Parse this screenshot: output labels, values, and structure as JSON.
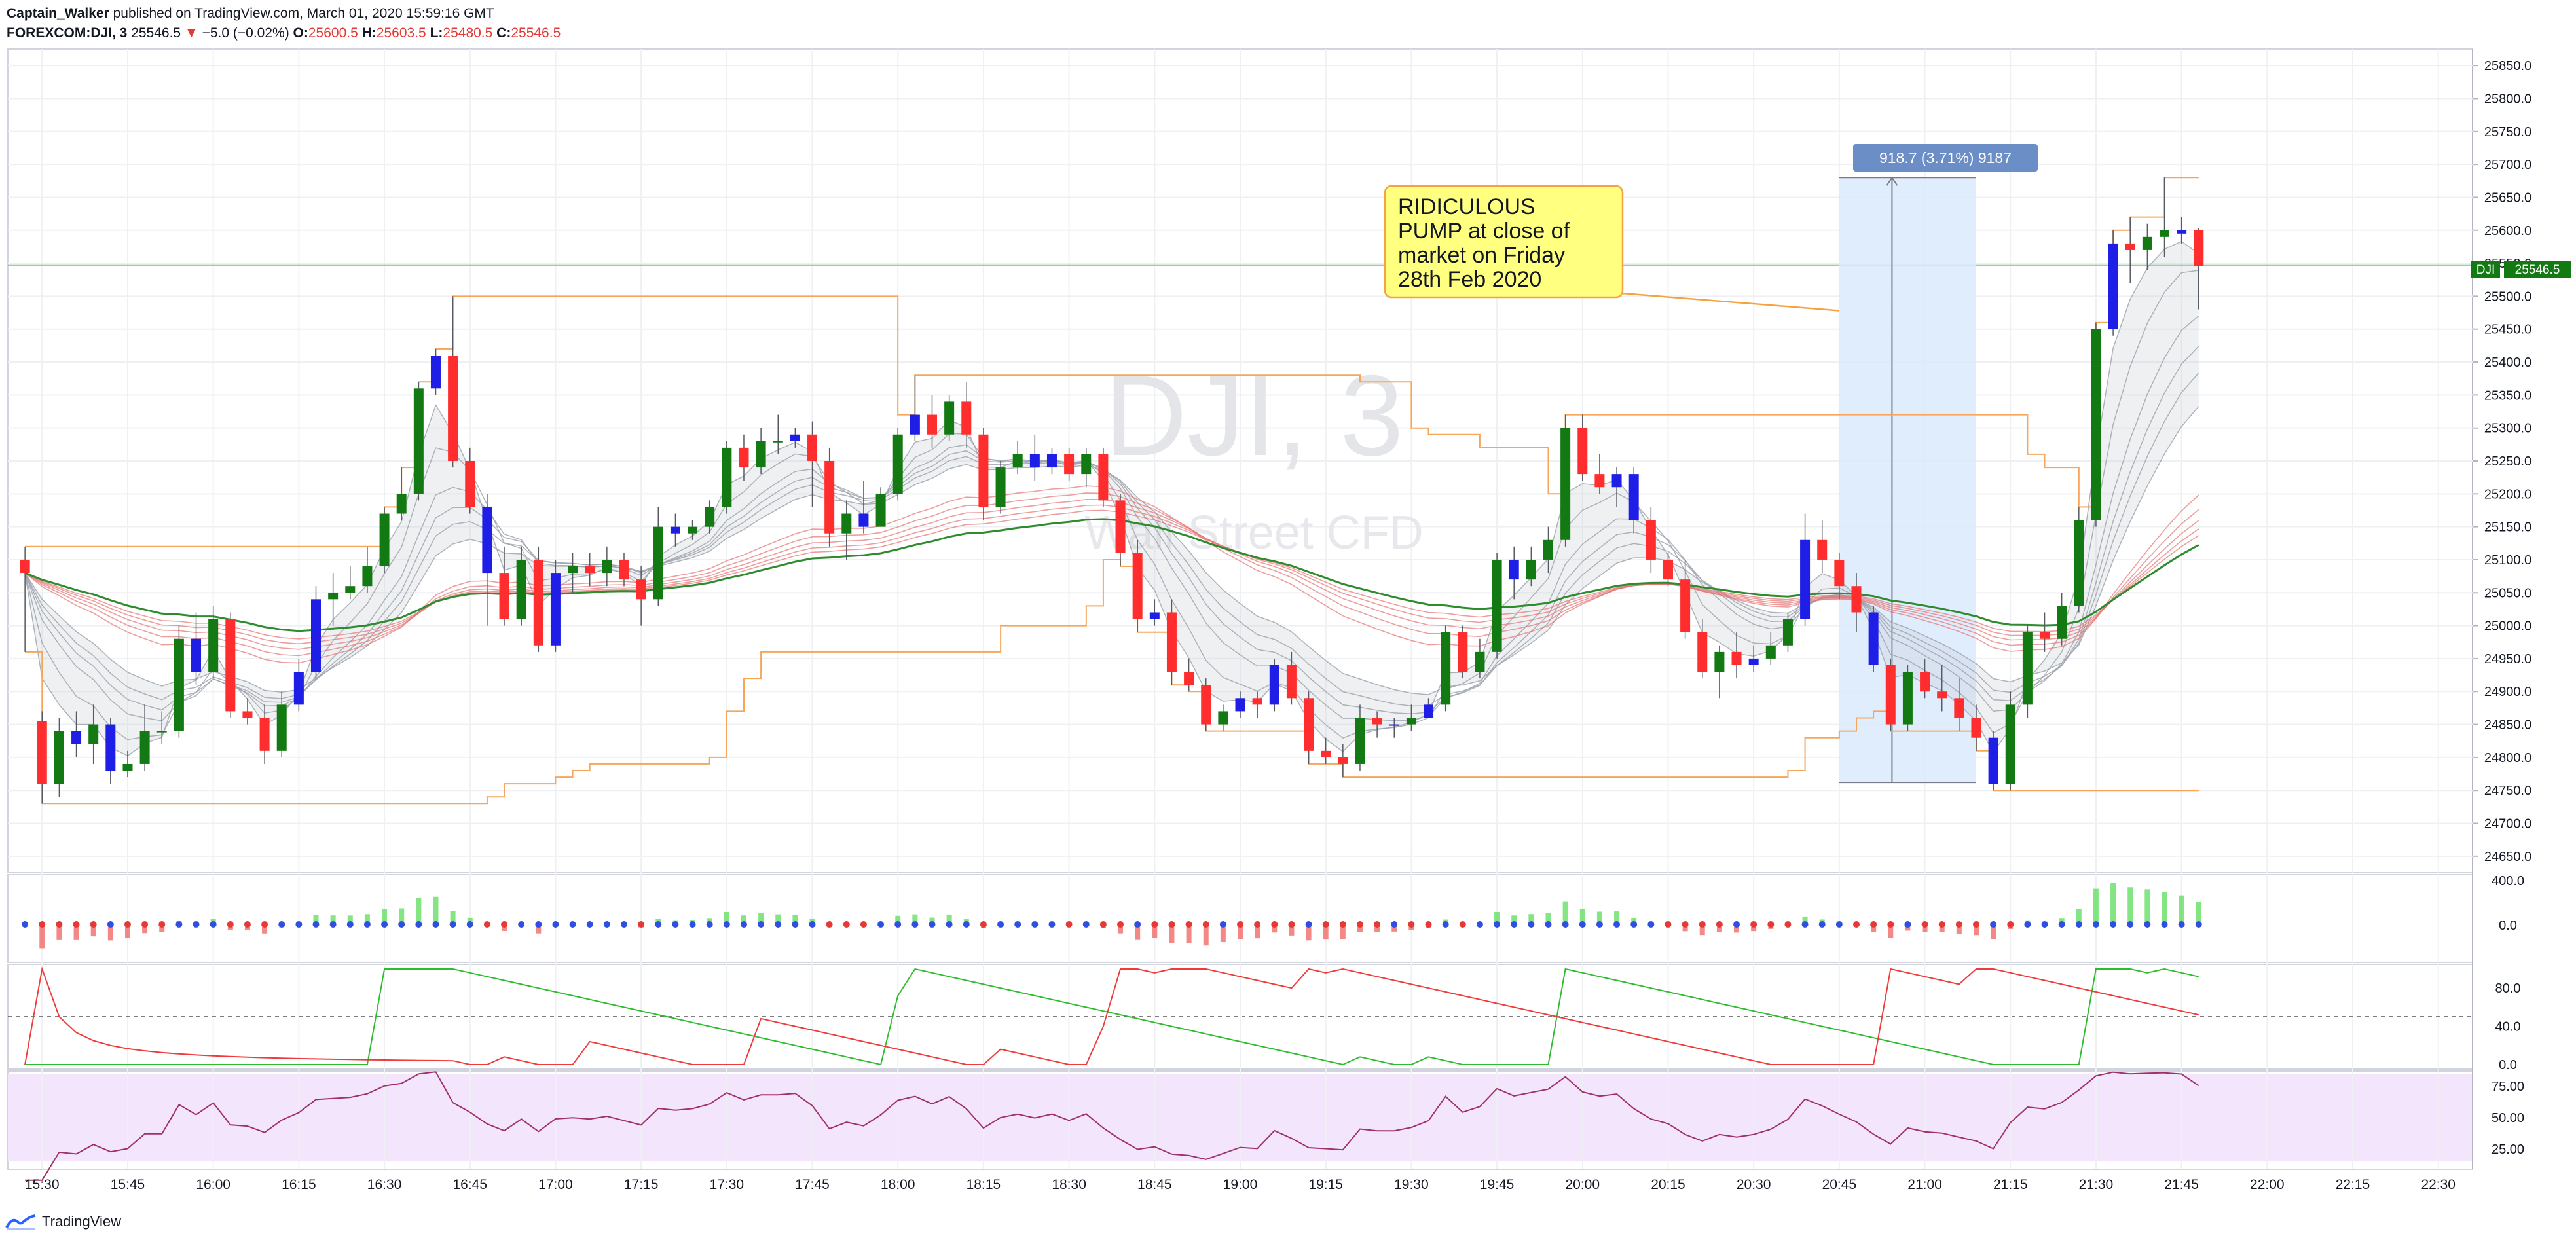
{
  "header": {
    "author": "Captain_Walker",
    "published": "published on TradingView.com, March 01, 2020 15:59:16 GMT",
    "symbol": "FOREXCOM:DJI, 3",
    "last": "25546.5",
    "change": "−5.0 (−0.02%)",
    "o_label": "O:",
    "o_value": "25600.5",
    "h_label": "H:",
    "h_value": "25603.5",
    "l_label": "L:",
    "l_value": "25480.5",
    "c_label": "C:",
    "c_value": "25546.5"
  },
  "watermark": {
    "symbol": "DJI, 3",
    "description": "Wall Street CFD"
  },
  "annotation": {
    "lines": [
      "RIDICULOUS",
      "PUMP at close of",
      "market on Friday",
      "28th Feb 2020"
    ]
  },
  "measure": {
    "label": "918.7 (3.71%) 9187"
  },
  "price_tag": {
    "symbol": "DJI",
    "value": "25546.5"
  },
  "footer": {
    "brand": "TradingView"
  },
  "colors": {
    "up": "#137a13",
    "down": "#ff2d2d",
    "neutral": "#1e1ee6",
    "grid": "#eef0f3",
    "accent": "#1e88e5"
  },
  "chart_data": {
    "type": "candlestick",
    "x_ticks": [
      "15:30",
      "15:45",
      "16:00",
      "16:15",
      "16:30",
      "16:45",
      "17:00",
      "17:15",
      "17:30",
      "17:45",
      "18:00",
      "18:15",
      "18:30",
      "18:45",
      "19:00",
      "19:15",
      "19:30",
      "19:45",
      "20:00",
      "20:15",
      "20:30",
      "20:45",
      "21:00",
      "21:15",
      "21:30",
      "21:45",
      "22:00",
      "22:15",
      "22:30"
    ],
    "price_ticks": [
      "25850.0",
      "25800.0",
      "25750.0",
      "25700.0",
      "25650.0",
      "25600.0",
      "25550.0",
      "25500.0",
      "25450.0",
      "25400.0",
      "25350.0",
      "25300.0",
      "25250.0",
      "25200.0",
      "25150.0",
      "25100.0",
      "25050.0",
      "25000.0",
      "24950.0",
      "24900.0",
      "24850.0",
      "24800.0",
      "24750.0",
      "24700.0",
      "24650.0"
    ],
    "price_range": [
      24625,
      25875
    ],
    "time_range": [
      "15:24",
      "22:36"
    ],
    "measure_range": {
      "from_time": "20:45",
      "to_time": "21:09",
      "low": 24762,
      "high": 25680
    },
    "annotation_target": {
      "time": "20:45",
      "price": 25478
    },
    "current_price": 25546.5,
    "candles": [
      [
        25100,
        25080,
        25120,
        24960
      ],
      [
        24855,
        24760,
        24870,
        24730
      ],
      [
        24760,
        24840,
        24860,
        24740
      ],
      [
        24840,
        24820,
        24870,
        24800
      ],
      [
        24820,
        24850,
        24880,
        24790
      ],
      [
        24850,
        24780,
        24860,
        24760
      ],
      [
        24780,
        24790,
        24810,
        24770
      ],
      [
        24790,
        24840,
        24880,
        24780
      ],
      [
        24840,
        24840,
        24870,
        24820
      ],
      [
        24840,
        24980,
        25000,
        24830
      ],
      [
        24980,
        24930,
        25020,
        24910
      ],
      [
        24930,
        25010,
        25030,
        24920
      ],
      [
        25010,
        24870,
        25020,
        24860
      ],
      [
        24870,
        24860,
        24890,
        24850
      ],
      [
        24860,
        24810,
        24880,
        24790
      ],
      [
        24810,
        24880,
        24900,
        24800
      ],
      [
        24880,
        24930,
        24950,
        24870
      ],
      [
        24930,
        25040,
        25060,
        24920
      ],
      [
        25040,
        25050,
        25080,
        25000
      ],
      [
        25050,
        25060,
        25090,
        25040
      ],
      [
        25060,
        25090,
        25120,
        25050
      ],
      [
        25090,
        25170,
        25180,
        25080
      ],
      [
        25170,
        25200,
        25240,
        25160
      ],
      [
        25200,
        25360,
        25370,
        25190
      ],
      [
        25360,
        25410,
        25420,
        25350
      ],
      [
        25410,
        25250,
        25500,
        25240
      ],
      [
        25250,
        25180,
        25270,
        25170
      ],
      [
        25180,
        25080,
        25200,
        25000
      ],
      [
        25080,
        25010,
        25120,
        25000
      ],
      [
        25010,
        25100,
        25120,
        25000
      ],
      [
        25100,
        24970,
        25120,
        24960
      ],
      [
        24970,
        25080,
        25100,
        24960
      ],
      [
        25080,
        25090,
        25110,
        25050
      ],
      [
        25090,
        25080,
        25110,
        25060
      ],
      [
        25080,
        25100,
        25120,
        25060
      ],
      [
        25100,
        25070,
        25110,
        25060
      ],
      [
        25070,
        25040,
        25090,
        25000
      ],
      [
        25040,
        25150,
        25180,
        25030
      ],
      [
        25150,
        25140,
        25170,
        25120
      ],
      [
        25140,
        25150,
        25160,
        25130
      ],
      [
        25150,
        25180,
        25190,
        25140
      ],
      [
        25180,
        25270,
        25280,
        25170
      ],
      [
        25270,
        25240,
        25290,
        25220
      ],
      [
        25240,
        25280,
        25300,
        25230
      ],
      [
        25280,
        25280,
        25320,
        25260
      ],
      [
        25280,
        25290,
        25300,
        25270
      ],
      [
        25290,
        25250,
        25310,
        25180
      ],
      [
        25250,
        25140,
        25270,
        25120
      ],
      [
        25140,
        25170,
        25190,
        25100
      ],
      [
        25170,
        25150,
        25220,
        25140
      ],
      [
        25150,
        25200,
        25210,
        25150
      ],
      [
        25200,
        25290,
        25300,
        25190
      ],
      [
        25290,
        25320,
        25380,
        25280
      ],
      [
        25320,
        25290,
        25350,
        25270
      ],
      [
        25290,
        25340,
        25350,
        25280
      ],
      [
        25340,
        25290,
        25370,
        25270
      ],
      [
        25290,
        25180,
        25300,
        25160
      ],
      [
        25180,
        25240,
        25250,
        25170
      ],
      [
        25240,
        25260,
        25280,
        25230
      ],
      [
        25260,
        25240,
        25290,
        25220
      ],
      [
        25240,
        25260,
        25270,
        25230
      ],
      [
        25260,
        25230,
        25270,
        25220
      ],
      [
        25230,
        25260,
        25270,
        25210
      ],
      [
        25260,
        25190,
        25270,
        25180
      ],
      [
        25190,
        25110,
        25200,
        25090
      ],
      [
        25110,
        25010,
        25130,
        24990
      ],
      [
        25010,
        25020,
        25040,
        25000
      ],
      [
        25020,
        24930,
        25040,
        24910
      ],
      [
        24930,
        24910,
        24950,
        24900
      ],
      [
        24910,
        24850,
        24920,
        24840
      ],
      [
        24850,
        24870,
        24880,
        24840
      ],
      [
        24870,
        24890,
        24900,
        24860
      ],
      [
        24890,
        24880,
        24900,
        24860
      ],
      [
        24880,
        24940,
        24950,
        24870
      ],
      [
        24940,
        24890,
        24960,
        24880
      ],
      [
        24890,
        24810,
        24900,
        24790
      ],
      [
        24810,
        24800,
        24830,
        24790
      ],
      [
        24800,
        24790,
        24820,
        24770
      ],
      [
        24790,
        24860,
        24880,
        24780
      ],
      [
        24860,
        24850,
        24870,
        24830
      ],
      [
        24850,
        24850,
        24860,
        24830
      ],
      [
        24850,
        24860,
        24880,
        24840
      ],
      [
        24860,
        24880,
        24890,
        24860
      ],
      [
        24880,
        24990,
        25000,
        24870
      ],
      [
        24990,
        24930,
        25000,
        24920
      ],
      [
        24930,
        24960,
        24980,
        24920
      ],
      [
        24960,
        25100,
        25110,
        24950
      ],
      [
        25100,
        25070,
        25120,
        25040
      ],
      [
        25070,
        25100,
        25120,
        25060
      ],
      [
        25100,
        25130,
        25150,
        25080
      ],
      [
        25130,
        25300,
        25320,
        25120
      ],
      [
        25300,
        25230,
        25320,
        25220
      ],
      [
        25230,
        25210,
        25260,
        25200
      ],
      [
        25210,
        25230,
        25240,
        25180
      ],
      [
        25230,
        25160,
        25240,
        25140
      ],
      [
        25160,
        25100,
        25180,
        25080
      ],
      [
        25100,
        25070,
        25110,
        25060
      ],
      [
        25070,
        24990,
        25100,
        24980
      ],
      [
        24990,
        24930,
        25010,
        24920
      ],
      [
        24930,
        24960,
        24970,
        24890
      ],
      [
        24960,
        24940,
        24990,
        24920
      ],
      [
        24940,
        24950,
        24970,
        24930
      ],
      [
        24950,
        24970,
        24990,
        24940
      ],
      [
        24970,
        25010,
        25020,
        24960
      ],
      [
        25010,
        25130,
        25170,
        25000
      ],
      [
        25130,
        25100,
        25160,
        25080
      ],
      [
        25100,
        25060,
        25110,
        25040
      ],
      [
        25060,
        25020,
        25080,
        24990
      ],
      [
        25020,
        24940,
        25030,
        24930
      ],
      [
        24940,
        24850,
        24950,
        24840
      ],
      [
        24850,
        24930,
        24940,
        24840
      ],
      [
        24930,
        24900,
        24950,
        24890
      ],
      [
        24900,
        24890,
        24940,
        24870
      ],
      [
        24890,
        24860,
        24920,
        24840
      ],
      [
        24860,
        24830,
        24880,
        24810
      ],
      [
        24830,
        24760,
        24840,
        24750
      ],
      [
        24760,
        24880,
        24900,
        24750
      ],
      [
        24880,
        24990,
        25000,
        24860
      ],
      [
        24990,
        24980,
        25020,
        24960
      ],
      [
        24980,
        25030,
        25050,
        24970
      ],
      [
        25030,
        25160,
        25180,
        25020
      ],
      [
        25160,
        25450,
        25460,
        25150
      ],
      [
        25450,
        25580,
        25600,
        25440
      ],
      [
        25580,
        25570,
        25620,
        25520
      ],
      [
        25570,
        25590,
        25610,
        25540
      ],
      [
        25590,
        25600,
        25680,
        25560
      ],
      [
        25600,
        25595,
        25620,
        25580
      ],
      [
        25600,
        25546,
        25603,
        25480
      ]
    ]
  }
}
